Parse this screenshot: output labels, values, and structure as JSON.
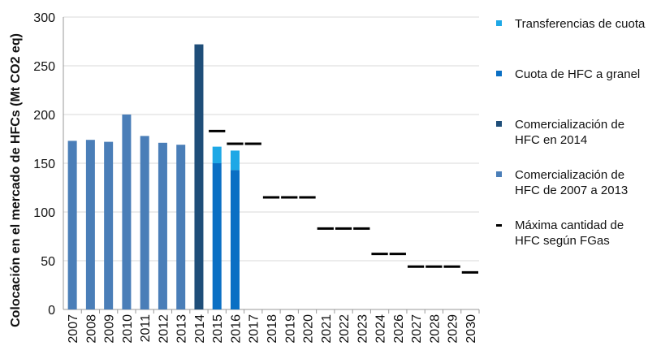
{
  "chart_data": {
    "type": "bar",
    "y_label": "Colocación en el mercado de HFCs (Mt CO2 eq)",
    "categories": [
      "2007",
      "2008",
      "2009",
      "2010",
      "2011",
      "2012",
      "2013",
      "2014",
      "2015",
      "2016",
      "2017",
      "2018",
      "2019",
      "2020",
      "2021",
      "2022",
      "2023",
      "2024",
      "2026",
      "2027",
      "2028",
      "2029",
      "2030"
    ],
    "series": [
      {
        "name": "Transferencias de cuota",
        "color": "#1ea8e6",
        "mark": "bar",
        "values": [
          null,
          null,
          null,
          null,
          null,
          null,
          null,
          null,
          17,
          20,
          null,
          null,
          null,
          null,
          null,
          null,
          null,
          null,
          null,
          null,
          null,
          null,
          null
        ]
      },
      {
        "name": "Cuota de HFC a granel",
        "color": "#0a6fc4",
        "mark": "bar",
        "values": [
          null,
          null,
          null,
          null,
          null,
          null,
          null,
          null,
          150,
          143,
          null,
          null,
          null,
          null,
          null,
          null,
          null,
          null,
          null,
          null,
          null,
          null,
          null
        ]
      },
      {
        "name": "Comercialización de HFC en 2014",
        "color": "#1f4e79",
        "mark": "bar",
        "values": [
          null,
          null,
          null,
          null,
          null,
          null,
          null,
          272,
          null,
          null,
          null,
          null,
          null,
          null,
          null,
          null,
          null,
          null,
          null,
          null,
          null,
          null,
          null
        ]
      },
      {
        "name": "Comercialización de HFC de 2007 a 2013",
        "color": "#4a7eb8",
        "mark": "bar",
        "values": [
          173,
          174,
          172,
          200,
          178,
          171,
          169,
          null,
          null,
          null,
          null,
          null,
          null,
          null,
          null,
          null,
          null,
          null,
          null,
          null,
          null,
          null,
          null
        ]
      },
      {
        "name": "Máxima cantidad de HFC según FGas",
        "color": "#000000",
        "mark": "dash",
        "values": [
          null,
          null,
          null,
          null,
          null,
          null,
          null,
          null,
          183,
          170,
          170,
          115,
          115,
          115,
          83,
          83,
          83,
          57,
          57,
          44,
          44,
          44,
          38
        ]
      }
    ],
    "ylim": [
      0,
      300
    ],
    "yticks": [
      0,
      50,
      100,
      150,
      200,
      250,
      300
    ],
    "grid": true
  }
}
